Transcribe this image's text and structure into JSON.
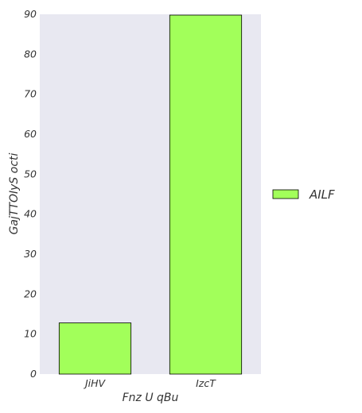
{
  "chart_data": {
    "type": "bar",
    "categories": [
      "JiHV",
      "IzcT"
    ],
    "series": [
      {
        "name": "AILF",
        "values": [
          12.8,
          89.8
        ]
      }
    ],
    "xlabel": "Fnz U qBu",
    "ylabel": "GajTTOIyS octi",
    "ylim": [
      0,
      90
    ],
    "yticks": [
      0,
      10,
      20,
      30,
      40,
      50,
      60,
      70,
      80,
      90
    ],
    "colors": {
      "bar": "#a2ff5a",
      "plot_bg": "#e8e8f1",
      "edge": "#000000"
    },
    "grid": false,
    "legend": {
      "placement": "right"
    }
  }
}
